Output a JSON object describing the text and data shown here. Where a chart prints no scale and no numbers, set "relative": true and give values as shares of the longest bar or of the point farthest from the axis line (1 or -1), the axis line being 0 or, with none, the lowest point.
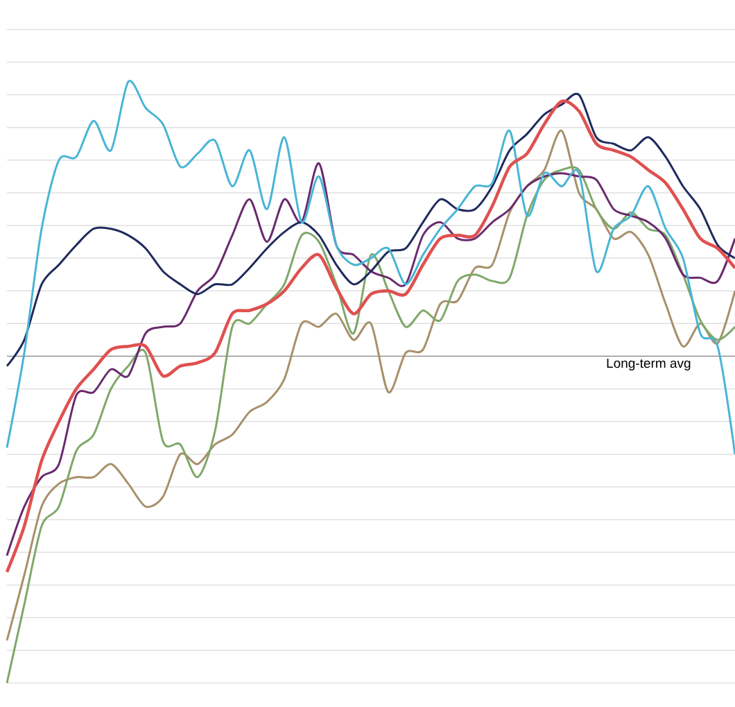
{
  "chart_data": {
    "type": "line",
    "relative": true,
    "grid": true,
    "categories": [
      null,
      null,
      null,
      null,
      null,
      null,
      null,
      null,
      null,
      null,
      null,
      null,
      null,
      null,
      null,
      null,
      null,
      null,
      null,
      null,
      null,
      null,
      null,
      null,
      null,
      null,
      null,
      null,
      null,
      null,
      null,
      null,
      null,
      null,
      null,
      null,
      null,
      null,
      null,
      null,
      null,
      null,
      null
    ],
    "ref_lines": [
      {
        "axis": "y",
        "value": 0,
        "label": "Long-term avg",
        "color": "#888888"
      }
    ],
    "series": [
      {
        "color": "#a8906a",
        "values": [
          -0.87,
          -0.67,
          -0.46,
          -0.39,
          -0.37,
          -0.37,
          -0.33,
          -0.39,
          -0.46,
          -0.43,
          -0.3,
          -0.33,
          -0.27,
          -0.24,
          -0.17,
          -0.14,
          -0.07,
          0.1,
          0.09,
          0.13,
          0.05,
          0.1,
          -0.11,
          0.01,
          0.02,
          0.16,
          0.17,
          0.27,
          0.28,
          0.44,
          0.52,
          0.57,
          0.69,
          0.5,
          0.45,
          0.36,
          0.38,
          0.31,
          0.16,
          0.03,
          0.1,
          0.04,
          0.2
        ]
      },
      {
        "color": "#7fa86a",
        "values": [
          -1,
          -0.76,
          -0.52,
          -0.46,
          -0.29,
          -0.24,
          -0.1,
          -0.03,
          0.01,
          -0.26,
          -0.27,
          -0.37,
          -0.23,
          0.09,
          0.1,
          0.16,
          0.22,
          0.37,
          0.35,
          0.22,
          0.07,
          0.31,
          0.2,
          0.09,
          0.14,
          0.11,
          0.23,
          0.25,
          0.23,
          0.24,
          0.43,
          0.54,
          0.57,
          0.57,
          0.45,
          0.39,
          0.44,
          0.39,
          0.37,
          0.25,
          0.11,
          0.05,
          0.09
        ]
      },
      {
        "color": "#6a2a6e",
        "values": [
          -0.61,
          -0.46,
          -0.37,
          -0.33,
          -0.12,
          -0.11,
          -0.04,
          -0.06,
          0.07,
          0.09,
          0.1,
          0.2,
          0.25,
          0.37,
          0.48,
          0.35,
          0.48,
          0.41,
          0.59,
          0.34,
          0.31,
          0.26,
          0.24,
          0.22,
          0.37,
          0.41,
          0.36,
          0.36,
          0.41,
          0.45,
          0.52,
          0.55,
          0.56,
          0.55,
          0.54,
          0.45,
          0.43,
          0.41,
          0.36,
          0.25,
          0.24,
          0.23,
          0.36
        ]
      },
      {
        "color": "#1f2a5c",
        "values": [
          -0.03,
          0.05,
          0.22,
          0.28,
          0.34,
          0.39,
          0.39,
          0.37,
          0.33,
          0.26,
          0.22,
          0.19,
          0.22,
          0.22,
          0.27,
          0.33,
          0.38,
          0.41,
          0.37,
          0.28,
          0.22,
          0.26,
          0.32,
          0.33,
          0.41,
          0.48,
          0.45,
          0.45,
          0.52,
          0.63,
          0.68,
          0.74,
          0.77,
          0.8,
          0.67,
          0.65,
          0.63,
          0.67,
          0.61,
          0.52,
          0.45,
          0.34,
          0.3
        ]
      },
      {
        "color": "#48b5d5",
        "values": [
          -0.28,
          0.01,
          0.39,
          0.6,
          0.61,
          0.72,
          0.63,
          0.84,
          0.76,
          0.71,
          0.58,
          0.62,
          0.66,
          0.52,
          0.63,
          0.45,
          0.67,
          0.41,
          0.55,
          0.34,
          0.28,
          0.3,
          0.33,
          0.22,
          0.31,
          0.39,
          0.45,
          0.52,
          0.53,
          0.69,
          0.43,
          0.56,
          0.52,
          0.56,
          0.26,
          0.39,
          0.43,
          0.52,
          0.39,
          0.3,
          0.07,
          0.03,
          -0.3
        ]
      },
      {
        "color": "#e05050",
        "values": [
          -0.66,
          -0.52,
          -0.32,
          -0.2,
          -0.1,
          -0.04,
          0.02,
          0.03,
          0.03,
          -0.06,
          -0.03,
          -0.02,
          0.01,
          0.13,
          0.14,
          0.16,
          0.2,
          0.27,
          0.31,
          0.21,
          0.13,
          0.19,
          0.2,
          0.19,
          0.28,
          0.36,
          0.37,
          0.37,
          0.46,
          0.58,
          0.62,
          0.71,
          0.78,
          0.75,
          0.65,
          0.63,
          0.61,
          0.57,
          0.53,
          0.45,
          0.36,
          0.33,
          0.27
        ]
      }
    ]
  }
}
